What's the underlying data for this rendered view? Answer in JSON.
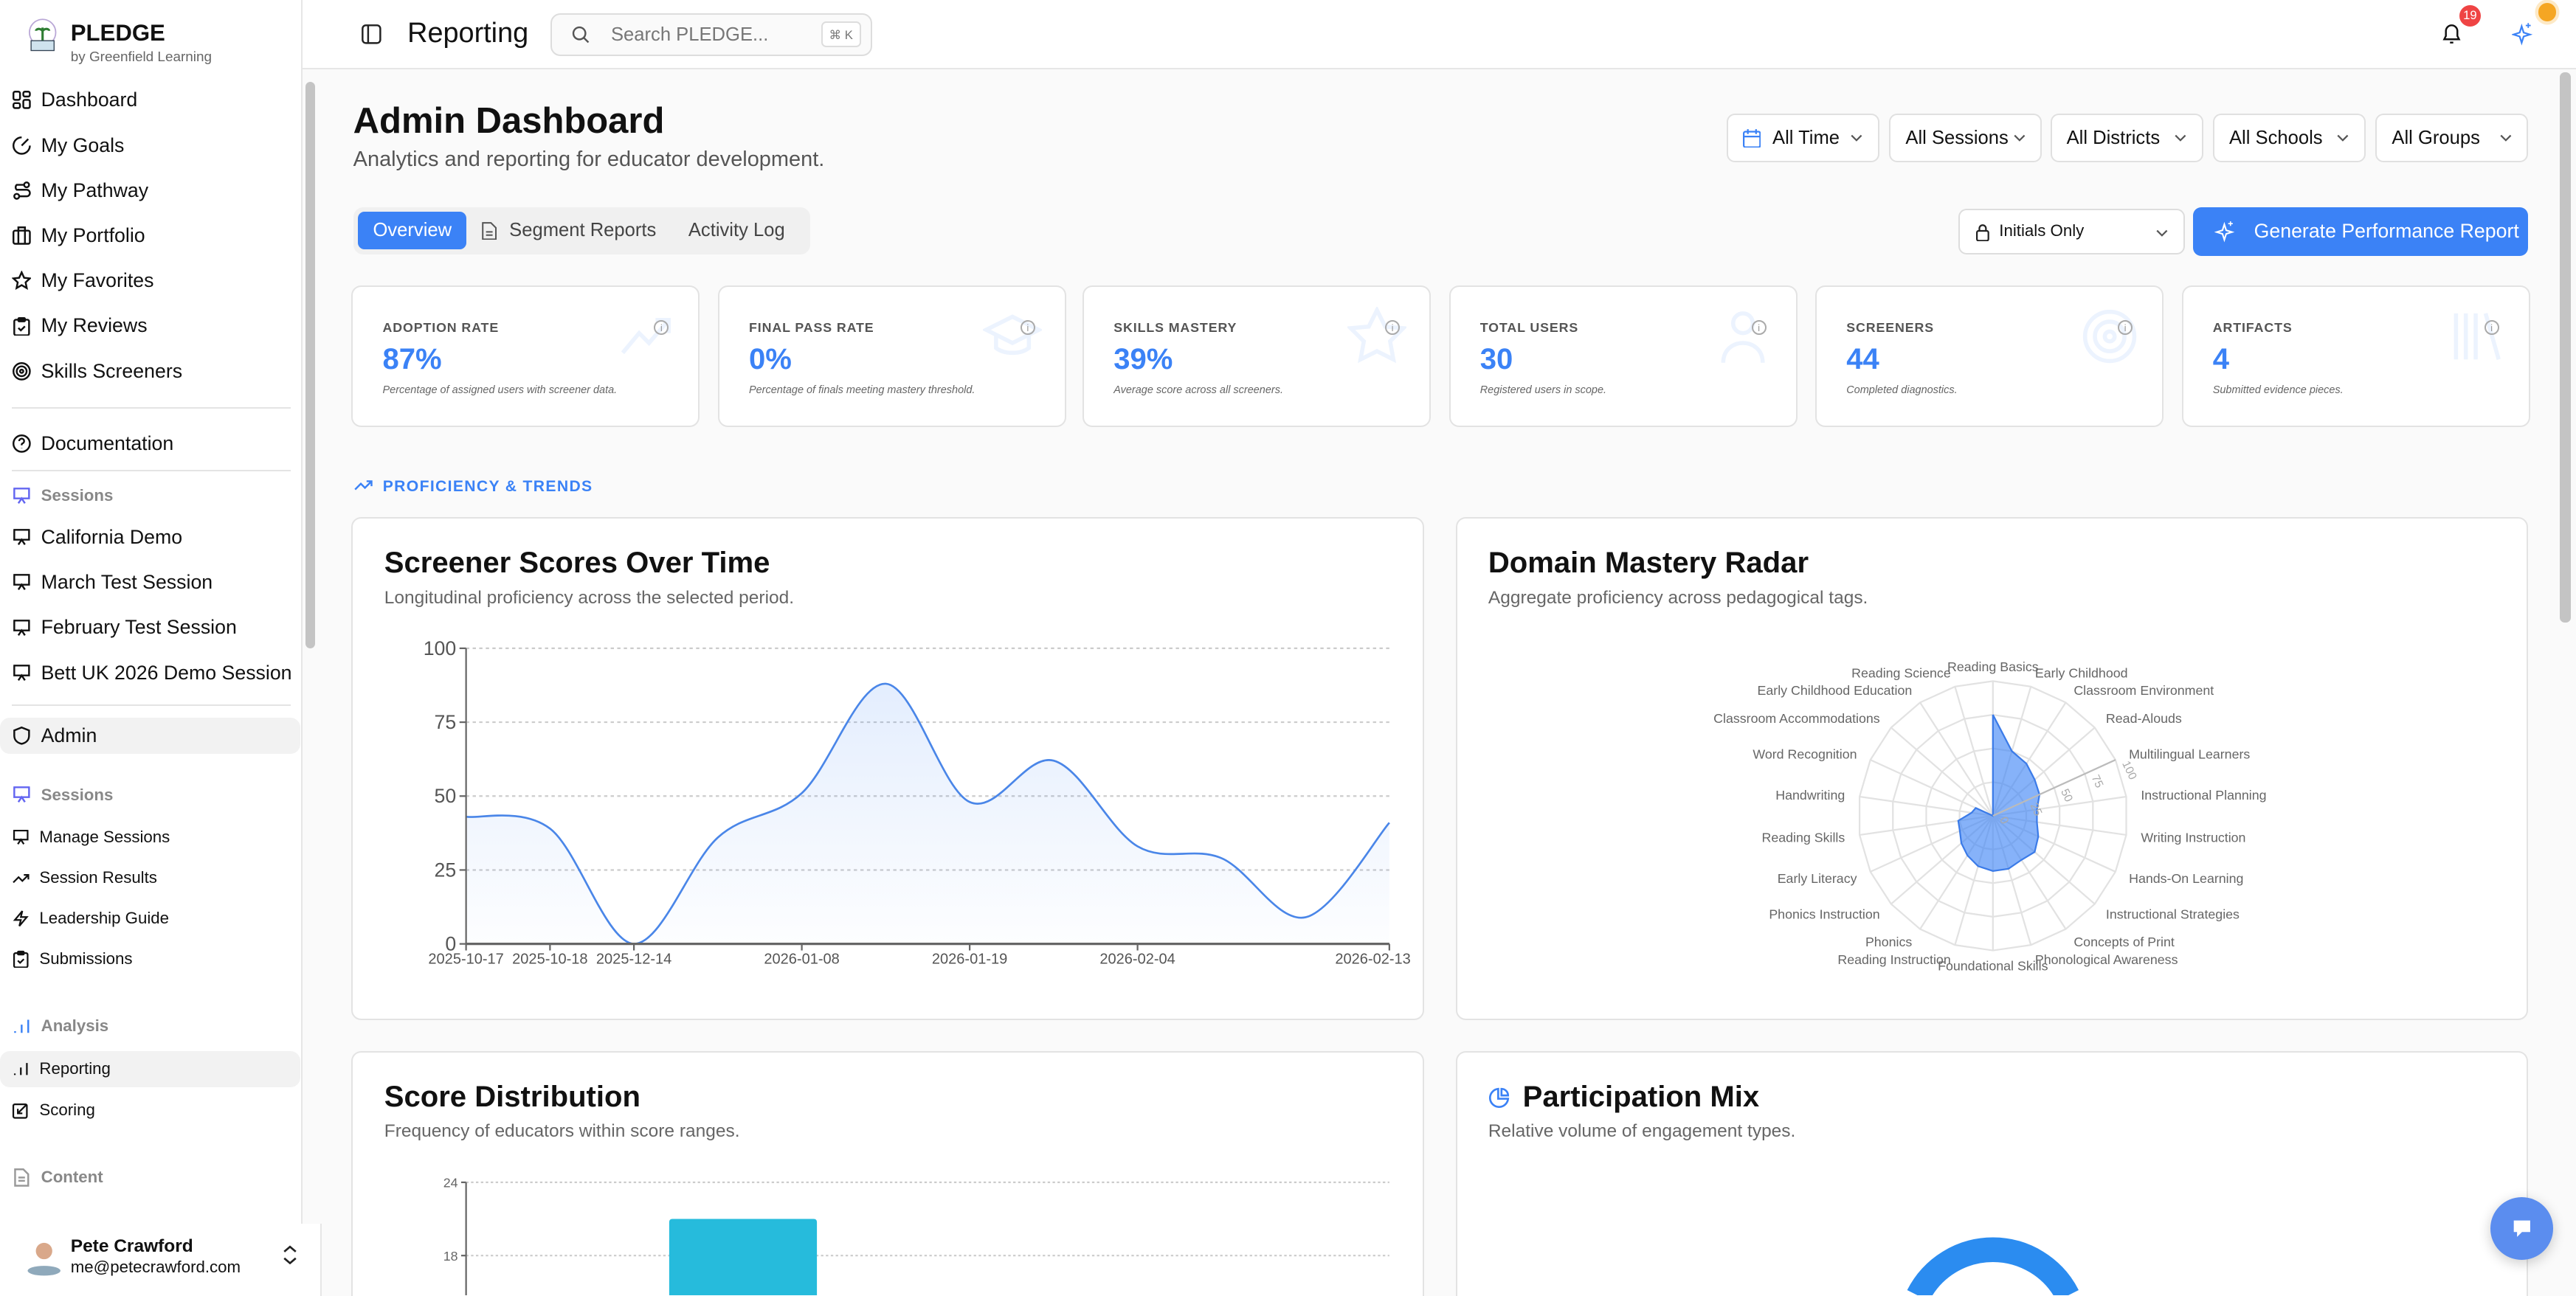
{
  "brand": {
    "name": "PLEDGE",
    "subtitle": "by Greenfield Learning"
  },
  "sidebar": {
    "main": [
      {
        "label": "Dashboard",
        "icon": "layout-grid-icon"
      },
      {
        "label": "My Goals",
        "icon": "goal-icon"
      },
      {
        "label": "My Pathway",
        "icon": "route-icon"
      },
      {
        "label": "My Portfolio",
        "icon": "briefcase-icon"
      },
      {
        "label": "My Favorites",
        "icon": "star-icon"
      },
      {
        "label": "My Reviews",
        "icon": "clipboard-check-icon"
      },
      {
        "label": "Skills Screeners",
        "icon": "target-icon"
      }
    ],
    "documentation": "Documentation",
    "sessions_header": "Sessions",
    "sessions": [
      "California Demo",
      "March Test Session",
      "February Test Session",
      "Bett UK 2026 Demo Session"
    ],
    "admin": "Admin",
    "admin_sessions_header": "Sessions",
    "admin_sessions": [
      "Manage Sessions",
      "Session Results",
      "Leadership Guide",
      "Submissions"
    ],
    "analysis_header": "Analysis",
    "analysis": [
      "Reporting",
      "Scoring"
    ],
    "content_header": "Content",
    "user": {
      "name": "Pete Crawford",
      "email": "me@petecrawford.com"
    }
  },
  "topbar": {
    "title": "Reporting",
    "search_placeholder": "Search PLEDGE...",
    "shortcut": "⌘ K",
    "notifications": "19"
  },
  "page": {
    "title": "Admin Dashboard",
    "subtitle": "Analytics and reporting for educator development."
  },
  "filters": [
    "All Time",
    "All Sessions",
    "All Districts",
    "All Schools",
    "All Groups"
  ],
  "tabs": [
    {
      "label": "Overview",
      "active": true
    },
    {
      "label": "Segment Reports"
    },
    {
      "label": "Activity Log"
    }
  ],
  "privacy_select": "Initials Only",
  "generate_button": "Generate Performance Report",
  "stats": [
    {
      "label": "ADOPTION RATE",
      "value": "87%",
      "desc": "Percentage of assigned users with screener data."
    },
    {
      "label": "FINAL PASS RATE",
      "value": "0%",
      "desc": "Percentage of finals meeting mastery threshold."
    },
    {
      "label": "SKILLS MASTERY",
      "value": "39%",
      "desc": "Average score across all screeners."
    },
    {
      "label": "TOTAL USERS",
      "value": "30",
      "desc": "Registered users in scope."
    },
    {
      "label": "SCREENERS",
      "value": "44",
      "desc": "Completed diagnostics."
    },
    {
      "label": "ARTIFACTS",
      "value": "4",
      "desc": "Submitted evidence pieces."
    }
  ],
  "section_label": "PROFICIENCY & TRENDS",
  "colors": {
    "accent": "#3b82f6",
    "bar": "#26bbdc",
    "donut": "#2b8cf0",
    "badge": "#ef4444",
    "status_dot": "#f5a623"
  },
  "chart_data": [
    {
      "type": "area",
      "title": "Screener Scores Over Time",
      "subtitle": "Longitudinal proficiency across the selected period.",
      "categories": [
        "2025-10-17",
        "2025-10-18",
        "2025-12-14",
        "",
        "2026-01-08",
        "",
        "2026-01-19",
        "",
        "2026-02-04",
        "",
        "",
        "2026-02-13"
      ],
      "values": [
        43,
        39,
        0,
        36,
        51,
        88,
        48,
        62,
        33,
        29,
        9,
        41
      ],
      "ylim": [
        0,
        100
      ],
      "yticks": [
        0,
        25,
        50,
        75,
        100
      ],
      "grid": true
    },
    {
      "type": "radar",
      "title": "Domain Mastery Radar",
      "subtitle": "Aggregate proficiency across pedagogical tags.",
      "categories": [
        "Reading Basics",
        "Early Childhood",
        "Classroom Environment",
        "Read-Alouds",
        "Multilingual Learners",
        "Instructional Planning",
        "Writing Instruction",
        "Hands-On Learning",
        "Instructional Strategies",
        "Concepts of Print",
        "Phonological Awareness",
        "Foundational Skills",
        "Reading Instruction",
        "Phonics",
        "Phonics Instruction",
        "Early Literacy",
        "Reading Skills",
        "Handwriting",
        "Word Recognition",
        "Classroom Accommodations",
        "Early Childhood Education",
        "Reading Science"
      ],
      "values": [
        75,
        50,
        46,
        41,
        38,
        33,
        33,
        37,
        41,
        39,
        41,
        41,
        39,
        35,
        31,
        27,
        26,
        16,
        14,
        0,
        0,
        0
      ],
      "rticks": [
        0,
        25,
        50,
        75,
        100
      ]
    },
    {
      "type": "bar",
      "title": "Score Distribution",
      "subtitle": "Frequency of educators within score ranges.",
      "values": [
        null,
        21,
        null,
        null,
        null
      ],
      "yticks": [
        18,
        24
      ],
      "grid": true
    },
    {
      "type": "pie",
      "title": "Participation Mix",
      "subtitle": "Relative volume of engagement types."
    }
  ]
}
